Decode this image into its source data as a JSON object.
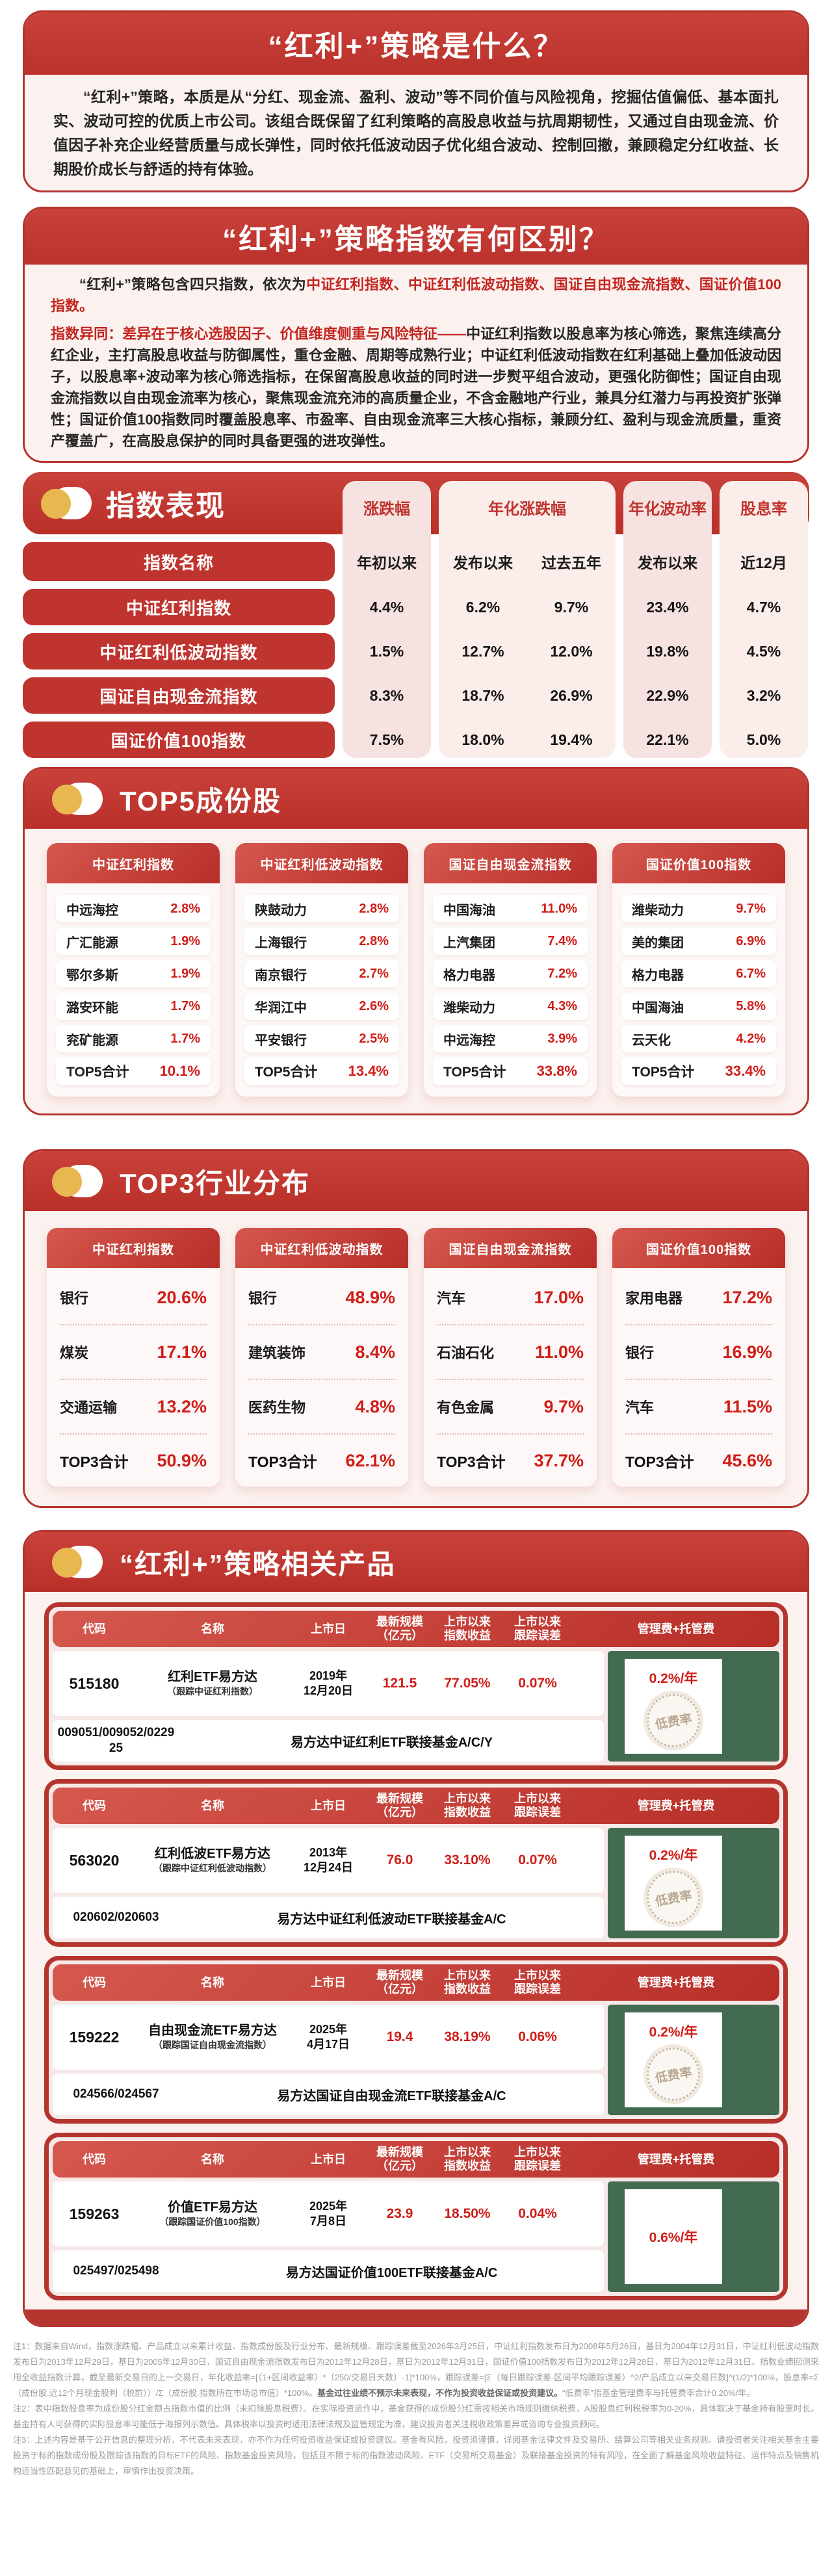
{
  "colors": {
    "accent_red": "#C0342F",
    "value_red": "#CF1E19",
    "fee_green": "#426B51",
    "icon_gold": "#E9B750",
    "panel_pink": "#FBF1EF"
  },
  "s1": {
    "title": "“红利+”策略是什么？",
    "body": "“红利+”策略，本质是从“分红、现金流、盈利、波动”等不同价值与风险视角，挖掘估值偏低、基本面扎实、波动可控的优质上市公司。该组合既保留了红利策略的高股息收益与抗周期韧性，又通过自由现金流、价值因子补充企业经营质量与成长弹性，同时依托低波动因子优化组合波动、控制回撤，兼顾稳定分红收益、长期股价成长与舒适的持有体验。"
  },
  "s2": {
    "title": "“红利+”策略指数有何区别？",
    "p1_black": "“红利+”策略包含四只指数，依次为",
    "p1_red": "中证红利指数、中证红利低波动指数、国证自由现金流指数、国证价值100指数。",
    "p2_red": "指数异同：差异在于核心选股因子、价值维度侧重与风险特征——",
    "p2_black": "中证红利指数以股息率为核心筛选，聚焦连续高分红企业，主打高股息收益与防御属性，重仓金融、周期等成熟行业；中证红利低波动指数在红利基础上叠加低波动因子，以股息率+波动率为核心筛选指标，在保留高股息收益的同时进一步熨平组合波动，更强化防御性；国证自由现金流指数以自由现金流率为核心，聚焦现金流充沛的高质量企业，不含金融地产行业，兼具分红潜力与再投资扩张弹性；国证价值100指数同时覆盖股息率、市盈率、自由现金流率三大核心指标，兼顾分红、盈利与现金流质量，重资产覆盖广，在高股息保护的同时具备更强的进攻弹性。"
  },
  "perf": {
    "title": "指数表现",
    "name_header": "指数名称",
    "groups": [
      "涨跌幅",
      "年化涨跌幅",
      "年化波动率",
      "股息率"
    ],
    "subs": [
      "年初以来",
      "发布以来",
      "过去五年",
      "发布以来",
      "近12月"
    ],
    "rows": [
      {
        "name": "中证红利指数",
        "v1": "4.4%",
        "v2": "6.2%",
        "v3": "9.7%",
        "v4": "23.4%",
        "v5": "4.7%"
      },
      {
        "name": "中证红利低波动指数",
        "v1": "1.5%",
        "v2": "12.7%",
        "v3": "12.0%",
        "v4": "19.8%",
        "v5": "4.5%"
      },
      {
        "name": "国证自由现金流指数",
        "v1": "8.3%",
        "v2": "18.7%",
        "v3": "26.9%",
        "v4": "22.9%",
        "v5": "3.2%"
      },
      {
        "name": "国证价值100指数",
        "v1": "7.5%",
        "v2": "18.0%",
        "v3": "19.4%",
        "v4": "22.1%",
        "v5": "5.0%"
      }
    ]
  },
  "top5": {
    "title": "TOP5成份股",
    "total_label": "TOP5合计",
    "cards": [
      {
        "index": "中证红利指数",
        "r": [
          [
            "中远海控",
            "2.8%"
          ],
          [
            "广汇能源",
            "1.9%"
          ],
          [
            "鄂尔多斯",
            "1.9%"
          ],
          [
            "潞安环能",
            "1.7%"
          ],
          [
            "兖矿能源",
            "1.7%"
          ]
        ],
        "total": "10.1%"
      },
      {
        "index": "中证红利低波动指数",
        "r": [
          [
            "陕鼓动力",
            "2.8%"
          ],
          [
            "上海银行",
            "2.8%"
          ],
          [
            "南京银行",
            "2.7%"
          ],
          [
            "华润江中",
            "2.6%"
          ],
          [
            "平安银行",
            "2.5%"
          ]
        ],
        "total": "13.4%"
      },
      {
        "index": "国证自由现金流指数",
        "r": [
          [
            "中国海油",
            "11.0%"
          ],
          [
            "上汽集团",
            "7.4%"
          ],
          [
            "格力电器",
            "7.2%"
          ],
          [
            "潍柴动力",
            "4.3%"
          ],
          [
            "中远海控",
            "3.9%"
          ]
        ],
        "total": "33.8%"
      },
      {
        "index": "国证价值100指数",
        "r": [
          [
            "潍柴动力",
            "9.7%"
          ],
          [
            "美的集团",
            "6.9%"
          ],
          [
            "格力电器",
            "6.7%"
          ],
          [
            "中国海油",
            "5.8%"
          ],
          [
            "云天化",
            "4.2%"
          ]
        ],
        "total": "33.4%"
      }
    ]
  },
  "top3": {
    "title": "TOP3行业分布",
    "total_label": "TOP3合计",
    "cards": [
      {
        "index": "中证红利指数",
        "r": [
          [
            "银行",
            "20.6%"
          ],
          [
            "煤炭",
            "17.1%"
          ],
          [
            "交通运输",
            "13.2%"
          ]
        ],
        "total": "50.9%"
      },
      {
        "index": "中证红利低波动指数",
        "r": [
          [
            "银行",
            "48.9%"
          ],
          [
            "建筑装饰",
            "8.4%"
          ],
          [
            "医药生物",
            "4.8%"
          ]
        ],
        "total": "62.1%"
      },
      {
        "index": "国证自由现金流指数",
        "r": [
          [
            "汽车",
            "17.0%"
          ],
          [
            "石油石化",
            "11.0%"
          ],
          [
            "有色金属",
            "9.7%"
          ]
        ],
        "total": "37.7%"
      },
      {
        "index": "国证价值100指数",
        "r": [
          [
            "家用电器",
            "17.2%"
          ],
          [
            "银行",
            "16.9%"
          ],
          [
            "汽车",
            "11.5%"
          ]
        ],
        "total": "45.6%"
      }
    ]
  },
  "products": {
    "title": "“红利+”策略相关产品",
    "h": {
      "code": "代码",
      "name": "名称",
      "date": "上市日",
      "scale1": "最新规模",
      "scale2": "（亿元）",
      "ret1": "上市以来",
      "ret2": "指数收益",
      "te1": "上市以来",
      "te2": "跟踪误差",
      "fee": "管理费+托管费"
    },
    "badge": "低费率",
    "items": [
      {
        "code": "515180",
        "name": "红利ETF易方达",
        "tracking": "（跟踪中证红利指数）",
        "date1": "2019年",
        "date2": "12月20日",
        "scale": "121.5",
        "ret": "77.05%",
        "te": "0.07%",
        "fee": "0.2%/年",
        "feeder_code": "009051/009052/022925",
        "feeder_name": "易方达中证红利ETF联接基金A/C/Y"
      },
      {
        "code": "563020",
        "name": "红利低波ETF易方达",
        "tracking": "（跟踪中证红利低波动指数）",
        "date1": "2013年",
        "date2": "12月24日",
        "scale": "76.0",
        "ret": "33.10%",
        "te": "0.07%",
        "fee": "0.2%/年",
        "feeder_code": "020602/020603",
        "feeder_name": "易方达中证红利低波动ETF联接基金A/C"
      },
      {
        "code": "159222",
        "name": "自由现金流ETF易方达",
        "tracking": "（跟踪国证自由现金流指数）",
        "date1": "2025年",
        "date2": "4月17日",
        "scale": "19.4",
        "ret": "38.19%",
        "te": "0.06%",
        "fee": "0.2%/年",
        "feeder_code": "024566/024567",
        "feeder_name": "易方达国证自由现金流ETF联接基金A/C"
      },
      {
        "code": "159263",
        "name": "价值ETF易方达",
        "tracking": "（跟踪国证价值100指数）",
        "date1": "2025年",
        "date2": "7月8日",
        "scale": "23.9",
        "ret": "18.50%",
        "te": "0.04%",
        "fee": "0.6%/年",
        "feeder_code": "025497/025498",
        "feeder_name": "易方达国证价值100ETF联接基金A/C"
      }
    ]
  },
  "footnotes": {
    "n1a": "注1：数据来自Wind，指数涨跌幅、产品成立以来累计收益、指数成份股及行业分布、最新规模、跟踪误差截至2026年3月25日，中证红利指数发布日为2008年5月26日，基日为2004年12月31日，中证红利低波动指数发布日为2013年12月29日，基日为2005年12月30日，国证自由现金流指数发布日为2012年12月28日，基日为2012年12月31日，国证价值100指数发布日为2012年12月28日，基日为2012年12月31日。指数业绩回测采用全收益指数计算，截至最新交易日的上一交易日，年化收益率=[（1+区间收益率）*（250/交易日天数）-1]*100%，跟踪误差=[Σ（每日跟踪误差-区间平均跟踪误差）^2/产品成立以来交易日数]^(1/2)*100%，股息率=Σ（成份股.近12个月现金股利（税前））/Σ（成份股.指数所在市场总市值）*100%。",
    "n1b": "基金过往业绩不预示未来表现，不作为投资收益保证或投资建议。",
    "n1c": "“低费率”指基金管理费率与托管费率合计0.20%/年。",
    "n2": "注2：表中指数股息率为成份股分红金额占指数市值的比例（未扣除股息税费）。在实际投资运作中，基金获得的成份股分红需按相关市场规则缴纳税费，A股股息红利税税率为0-20%，具体取决于基金持有股票时长。基金持有人可获得的实际股息率可能低于海报列示数值。具体税率以投资时适用法律法规及监管规定为准，建议投资者关注税收政策差异或咨询专业投资顾问。",
    "n3": "注3：上述内容是基于公开信息的整理分析，不代表未来表现，亦不作为任何投资收益保证或投资建议。基金有风险，投资须谨慎，详阅基金法律文件及交易所、结算公司等相关业务规则。请投资者关注相关基金主要投资于标的指数成份股及跟踪该指数的目标ETF的风险、指数基金投资风险，包括且不限于标的指数波动风险、ETF（交易所交易基金）及联接基金投资的特有风险，在全面了解基金风险收益特征、运作特点及销售机构适当性匹配意见的基础上，审慎作出投资决策。"
  }
}
